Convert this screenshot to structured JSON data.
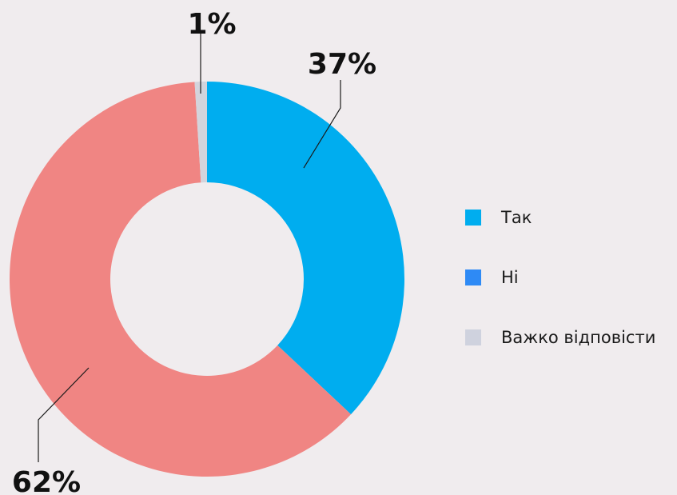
{
  "chart_data": {
    "type": "pie",
    "variant": "donut",
    "categories": [
      "Так",
      "Ні",
      "Важко відповісти"
    ],
    "values": [
      37,
      62,
      1
    ],
    "value_labels": [
      "37%",
      "62%",
      "1%"
    ],
    "colors": [
      "#00adef",
      "#f08583",
      "#d3d4dc"
    ],
    "legend": {
      "placement": "right",
      "entries": [
        {
          "label": "Так",
          "color": "#00adef"
        },
        {
          "label": "Ні",
          "color": "#2e8af5"
        },
        {
          "label": "Важко відповісти",
          "color": "#cfd2de"
        }
      ]
    }
  }
}
